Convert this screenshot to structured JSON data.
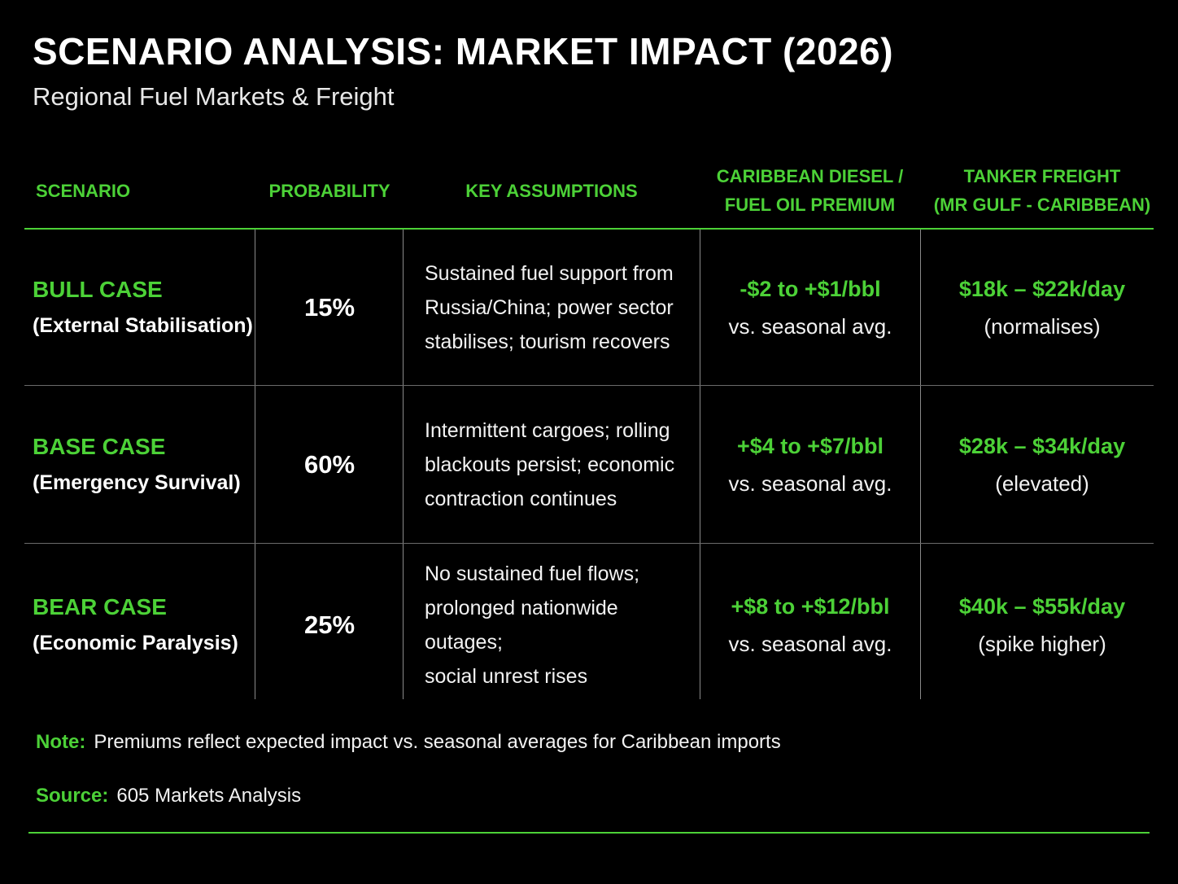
{
  "header": {
    "title": "SCENARIO ANALYSIS: MARKET IMPACT (2026)",
    "subtitle": "Regional Fuel Markets & Freight"
  },
  "table": {
    "columns": {
      "scenario": "SCENARIO",
      "probability": "PROBABILITY",
      "assumptions": "KEY ASSUMPTIONS",
      "premium_line1": "CARIBBEAN DIESEL /",
      "premium_line2": "FUEL OIL PREMIUM",
      "freight_line1": "TANKER FREIGHT",
      "freight_line2": "(MR GULF - CARIBBEAN)"
    },
    "rows": [
      {
        "name": "BULL CASE",
        "subtitle": "(External Stabilisation)",
        "probability": "15%",
        "assumption_lines": [
          "Sustained fuel support from",
          "Russia/China; power sector",
          "stabilises; tourism recovers"
        ],
        "premium": "-$2 to +$1/bbl",
        "premium_note": "vs. seasonal avg.",
        "freight": "$18k – $22k/day",
        "freight_note": "(normalises)"
      },
      {
        "name": "BASE CASE",
        "subtitle": "(Emergency Survival)",
        "probability": "60%",
        "assumption_lines": [
          "Intermittent cargoes; rolling",
          "blackouts persist; economic",
          "contraction continues"
        ],
        "premium": "+$4 to +$7/bbl",
        "premium_note": "vs. seasonal avg.",
        "freight": "$28k – $34k/day",
        "freight_note": "(elevated)"
      },
      {
        "name": "BEAR CASE",
        "subtitle": "(Economic Paralysis)",
        "probability": "25%",
        "assumption_lines": [
          "No sustained fuel flows;",
          "prolonged nationwide outages;",
          "social unrest rises"
        ],
        "premium": "+$8 to +$12/bbl",
        "premium_note": "vs. seasonal avg.",
        "freight": "$40k – $55k/day",
        "freight_note": "(spike higher)"
      }
    ]
  },
  "footer": {
    "note_label": "Note:",
    "note_text": "Premiums reflect expected impact vs. seasonal averages for Caribbean imports",
    "source_label": "Source:",
    "source_text": "605 Markets Analysis"
  },
  "colors": {
    "accent": "#4cd137",
    "background": "#000000",
    "text": "#ffffff"
  }
}
